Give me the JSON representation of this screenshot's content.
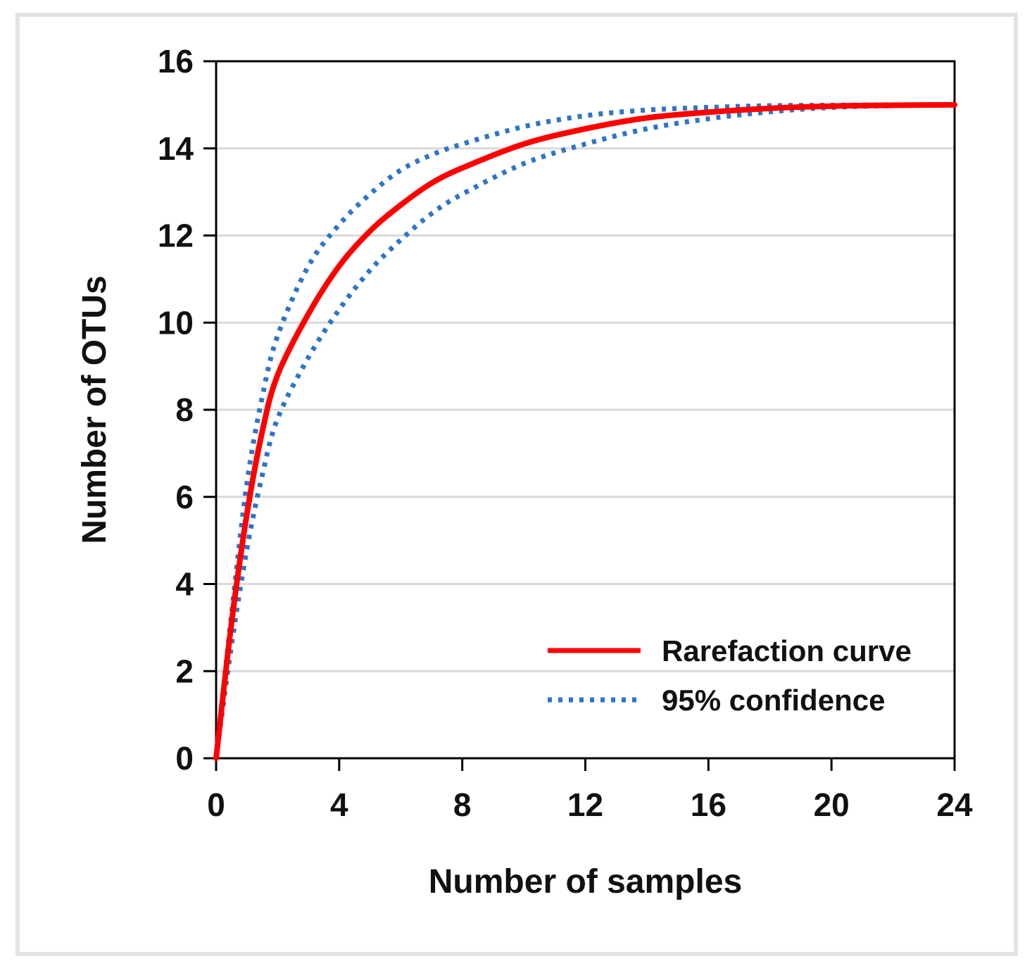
{
  "chart_data": {
    "type": "line",
    "title": "",
    "xlabel": "Number of samples",
    "ylabel": "Number of OTUs",
    "xlim": [
      0,
      24
    ],
    "ylim": [
      0,
      16
    ],
    "xticks": [
      0,
      4,
      8,
      12,
      16,
      20,
      24
    ],
    "yticks": [
      0,
      2,
      4,
      6,
      8,
      10,
      12,
      14,
      16
    ],
    "grid": "horizontal",
    "legend_position": "bottom-right",
    "series": [
      {
        "name": "Rarefaction curve",
        "style": "solid",
        "color": "#ff0000",
        "x": [
          0,
          0.5,
          1,
          1.5,
          2,
          3,
          4,
          5,
          6,
          7,
          8,
          10,
          12,
          14,
          16,
          18,
          20,
          22,
          24
        ],
        "y": [
          0,
          3.1,
          5.6,
          7.5,
          8.8,
          10.2,
          11.3,
          12.1,
          12.7,
          13.2,
          13.55,
          14.1,
          14.45,
          14.7,
          14.83,
          14.92,
          14.97,
          14.99,
          15.0
        ]
      },
      {
        "name": "95% confidence",
        "style": "dotted",
        "color": "#2e75c6",
        "x": [
          0,
          0.5,
          1,
          1.5,
          2,
          3,
          4,
          5,
          6,
          7,
          8,
          10,
          12,
          14,
          16,
          18,
          20,
          22,
          24
        ],
        "y": [
          0,
          3.3,
          6.3,
          8.3,
          9.7,
          11.3,
          12.25,
          12.95,
          13.5,
          13.85,
          14.1,
          14.5,
          14.75,
          14.88,
          14.94,
          14.98,
          14.99,
          15.0,
          15.0
        ]
      },
      {
        "name": "95% confidence (lower)",
        "style": "dotted",
        "color": "#2e75c6",
        "show_in_legend": false,
        "x": [
          0,
          0.5,
          1,
          1.5,
          2,
          3,
          4,
          5,
          6,
          7,
          8,
          10,
          12,
          14,
          16,
          18,
          20,
          22,
          24
        ],
        "y": [
          0,
          2.6,
          4.8,
          6.5,
          7.8,
          9.2,
          10.3,
          11.2,
          11.9,
          12.5,
          12.95,
          13.65,
          14.1,
          14.45,
          14.68,
          14.84,
          14.94,
          14.98,
          15.0
        ]
      }
    ]
  }
}
